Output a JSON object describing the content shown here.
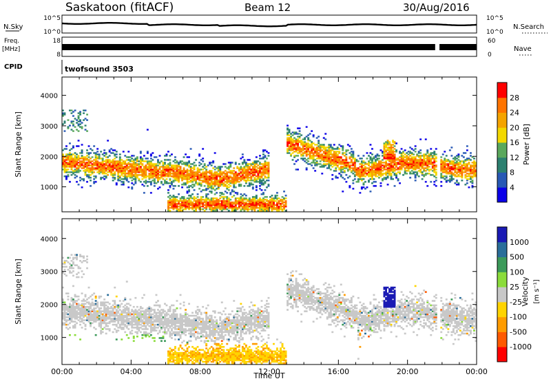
{
  "header": {
    "title": "Saskatoon (fitACF)",
    "beam": "Beam 12",
    "date": "30/Aug/2016"
  },
  "top_panels": {
    "nsky_label": "N.Sky",
    "nsky_ticks": [
      "10^5",
      "10^0"
    ],
    "nsearch_label": "N.Search",
    "nsearch_ticks": [
      "10^5",
      "10^0"
    ],
    "freq_label_1": "Freq.",
    "freq_label_2": "[MHz]",
    "freq_ticks": [
      "18",
      "8"
    ],
    "nave_label": "Nave",
    "nave_ticks": [
      "60",
      "0"
    ],
    "cpid_label": "CPID",
    "cpid_value": "twofsound 3503"
  },
  "chart_data": [
    {
      "type": "heatmap",
      "name": "power",
      "ylabel": "Slant Range [km]",
      "ylim": [
        180,
        4600
      ],
      "yticks": [
        "1000",
        "2000",
        "3000",
        "4000"
      ],
      "x_start": "00:00",
      "x_end": "24:00",
      "colorbar_label": "Power [dB]",
      "colorbar_ticks": [
        "4",
        "8",
        "12",
        "16",
        "20",
        "24",
        "28"
      ],
      "colorbar_colors": [
        "#0b00e8",
        "#2859b5",
        "#2c8070",
        "#5aa85c",
        "#f3d800",
        "#f5a400",
        "#ff7400",
        "#ff0000"
      ]
    },
    {
      "type": "heatmap",
      "name": "velocity",
      "ylabel": "Slant Range [km]",
      "ylim": [
        180,
        4600
      ],
      "yticks": [
        "1000",
        "2000",
        "3000",
        "4000"
      ],
      "xlabel": "Time UT",
      "xticks": [
        "00:00",
        "04:00",
        "08:00",
        "12:00",
        "16:00",
        "20:00",
        "00:00"
      ],
      "colorbar_label": "Velocity",
      "colorbar_unit": "[m s⁻¹]",
      "colorbar_ticks": [
        "1000",
        "500",
        "100",
        "25",
        "-25",
        "-100",
        "-500",
        "-1000"
      ],
      "colorbar_colors": [
        "#1a1ab4",
        "#2a6e9a",
        "#3c9a5a",
        "#8bdc3b",
        "#c8c8c8",
        "#ffd400",
        "#ff9c00",
        "#ff5a00",
        "#ff0000"
      ]
    }
  ]
}
